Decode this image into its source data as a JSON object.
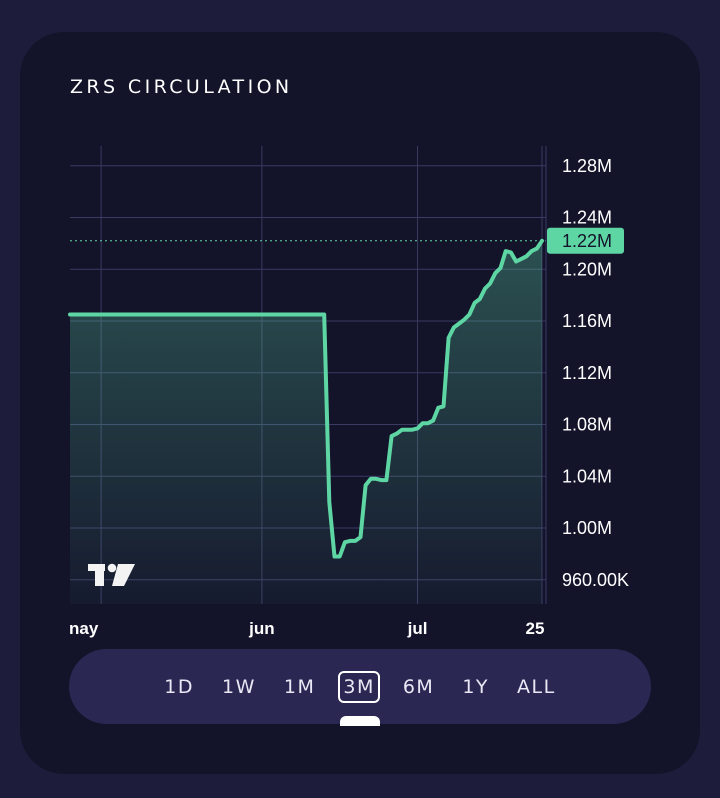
{
  "widget": {
    "title": "ZRS CIRCULATION"
  },
  "ranges": [
    {
      "label": "1D",
      "active": false
    },
    {
      "label": "1W",
      "active": false
    },
    {
      "label": "1M",
      "active": false
    },
    {
      "label": "3M",
      "active": true
    },
    {
      "label": "6M",
      "active": false
    },
    {
      "label": "1Y",
      "active": false
    },
    {
      "label": "ALL",
      "active": false
    }
  ],
  "colors": {
    "line": "#5ed6a4",
    "last_price_badge": "#5ed6a4",
    "background": "#13132a",
    "grid": "#3a3a62"
  },
  "icons": {
    "watermark": "tradingview-logo-icon"
  },
  "chart_data": {
    "type": "area",
    "series": [
      {
        "x": [
          "2024-04-25",
          "2024-06-02",
          "2024-06-13",
          "2024-06-14",
          "2024-06-15",
          "2024-06-16",
          "2024-06-17",
          "2024-06-18",
          "2024-06-19",
          "2024-06-20",
          "2024-06-21",
          "2024-06-22",
          "2024-06-23",
          "2024-06-24",
          "2024-06-25",
          "2024-06-26",
          "2024-06-27",
          "2024-06-28",
          "2024-06-29",
          "2024-06-30",
          "2024-07-01",
          "2024-07-02",
          "2024-07-03",
          "2024-07-04",
          "2024-07-05",
          "2024-07-06",
          "2024-07-07",
          "2024-07-08",
          "2024-07-09",
          "2024-07-10",
          "2024-07-11",
          "2024-07-12",
          "2024-07-13",
          "2024-07-14",
          "2024-07-15",
          "2024-07-16",
          "2024-07-17",
          "2024-07-18",
          "2024-07-19",
          "2024-07-20",
          "2024-07-21",
          "2024-07-22",
          "2024-07-23",
          "2024-07-24",
          "2024-07-25"
        ],
        "y": [
          1.165,
          1.165,
          1.165,
          1.02,
          0.978,
          0.978,
          0.989,
          0.99,
          0.99,
          0.993,
          1.033,
          1.038,
          1.038,
          1.037,
          1.037,
          1.071,
          1.073,
          1.076,
          1.076,
          1.076,
          1.077,
          1.081,
          1.081,
          1.083,
          1.093,
          1.094,
          1.147,
          1.155,
          1.158,
          1.161,
          1.165,
          1.174,
          1.177,
          1.185,
          1.189,
          1.197,
          1.201,
          1.214,
          1.213,
          1.206,
          1.208,
          1.21,
          1.214,
          1.216,
          1.222
        ]
      }
    ],
    "y_unit": "M",
    "x_tick_labels": [
      "nay",
      "jun",
      "jul",
      "25"
    ],
    "x_tick_dates": [
      "2024-05-01",
      "2024-06-01",
      "2024-07-01",
      "2024-07-25"
    ],
    "y_tick_labels": [
      "960.00K",
      "1.00M",
      "1.04M",
      "1.08M",
      "1.12M",
      "1.16M",
      "1.20M",
      "1.24M",
      "1.28M"
    ],
    "y_ticks": [
      0.96,
      1.0,
      1.04,
      1.08,
      1.12,
      1.16,
      1.2,
      1.24,
      1.28
    ],
    "ylim": [
      0.94,
      1.29
    ],
    "last_value_label": "1.22M",
    "last_value": 1.222,
    "grid": true
  }
}
